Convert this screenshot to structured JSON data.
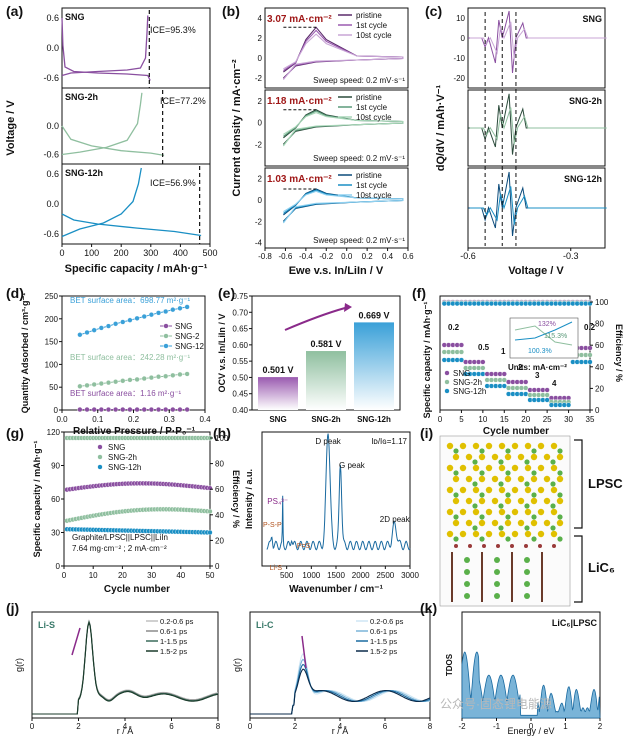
{
  "panel_letters": [
    "(a)",
    "(b)",
    "(c)",
    "(d)",
    "(e)",
    "(f)",
    "(g)",
    "(h)",
    "(i)",
    "(j)",
    "(k)"
  ],
  "watermark": "公众号·固态锂电能源",
  "chart_data": [
    {
      "panel": "(a)",
      "type": "line",
      "xlabel": "Specific capacity / mAh·g⁻¹",
      "ylabel": "Voltage / V",
      "xlim": [
        0,
        500
      ],
      "xticks": [
        "0",
        "100",
        "200",
        "300",
        "400",
        "500"
      ],
      "yticks": [
        "0.6",
        "0.0",
        "-0.6"
      ],
      "subplots": [
        {
          "label": "SNG",
          "ice": "ICE=95.3%",
          "color": "#8a4fa0",
          "ylim": [
            -0.8,
            0.8
          ],
          "dis": [
            [
              0,
              0.6
            ],
            [
              3,
              0.05
            ],
            [
              10,
              -0.38
            ],
            [
              40,
              -0.47
            ],
            [
              120,
              -0.5
            ],
            [
              220,
              -0.52
            ],
            [
              290,
              -0.55
            ],
            [
              298,
              -0.65
            ]
          ],
          "chg": [
            [
              0,
              -0.55
            ],
            [
              30,
              -0.5
            ],
            [
              120,
              -0.47
            ],
            [
              220,
              -0.44
            ],
            [
              265,
              -0.4
            ],
            [
              282,
              -0.2
            ],
            [
              287,
              0.3
            ],
            [
              290,
              0.65
            ]
          ],
          "dash_x": 295
        },
        {
          "label": "SNG-2h",
          "ice": "ICE=77.2%",
          "color": "#8fbf9f",
          "ylim": [
            -0.8,
            0.8
          ],
          "dis": [
            [
              0,
              0.0
            ],
            [
              30,
              -0.28
            ],
            [
              100,
              -0.42
            ],
            [
              200,
              -0.52
            ],
            [
              300,
              -0.57
            ],
            [
              345,
              -0.62
            ]
          ],
          "chg": [
            [
              0,
              -0.6
            ],
            [
              60,
              -0.55
            ],
            [
              150,
              -0.45
            ],
            [
              220,
              -0.3
            ],
            [
              255,
              0.05
            ],
            [
              265,
              0.45
            ],
            [
              270,
              0.7
            ]
          ],
          "dash_x": 340
        },
        {
          "label": "SNG-12h",
          "ice": "ICE=56.9%",
          "color": "#1a8fc4",
          "ylim": [
            -0.8,
            0.8
          ],
          "dis": [
            [
              0,
              -0.2
            ],
            [
              40,
              -0.32
            ],
            [
              120,
              -0.4
            ],
            [
              250,
              -0.48
            ],
            [
              380,
              -0.55
            ],
            [
              470,
              -0.63
            ]
          ],
          "chg": [
            [
              0,
              -0.65
            ],
            [
              60,
              -0.5
            ],
            [
              140,
              -0.38
            ],
            [
              200,
              -0.2
            ],
            [
              240,
              0.05
            ],
            [
              258,
              0.4
            ],
            [
              268,
              0.72
            ]
          ],
          "dash_x": 465
        }
      ]
    },
    {
      "panel": "(b)",
      "type": "line",
      "xlabel": "Ewe v.s. In/LiIn / V",
      "ylabel": "Current density / mA·cm⁻²",
      "xlim": [
        -0.8,
        0.6
      ],
      "xticks": [
        "-0.8",
        "-0.6",
        "-0.4",
        "-0.2",
        "0.0",
        "0.2",
        "0.4",
        "0.6"
      ],
      "sweep": "Sweep speed: 0.2 mV·s⁻¹",
      "legend": [
        "pristine",
        "1st cycle",
        "10st cycle"
      ],
      "subplots": [
        {
          "peak": "3.07 mA·cm⁻²",
          "ylim": [
            -3,
            5
          ],
          "yticks": [
            "4",
            "2",
            "0",
            "-2"
          ],
          "colors": [
            "#5a2a6a",
            "#9a5ab0",
            "#c9a6d6"
          ],
          "peak_val": 3.07
        },
        {
          "peak": "1.18 mA·cm⁻²",
          "ylim": [
            -4,
            3
          ],
          "yticks": [
            "2",
            "0",
            "-2"
          ],
          "colors": [
            "#2a4a3a",
            "#5a9a7a",
            "#a8d6b8"
          ],
          "peak_val": 1.18
        },
        {
          "peak": "1.03 mA·cm⁻²",
          "ylim": [
            -4.5,
            3
          ],
          "yticks": [
            "2",
            "0",
            "-2",
            "-4"
          ],
          "colors": [
            "#0a4a7a",
            "#1a8fc4",
            "#8fd0f0"
          ],
          "peak_val": 1.03
        }
      ]
    },
    {
      "panel": "(c)",
      "type": "line",
      "xlabel": "Voltage / V",
      "ylabel": "dQ/dV / mAh·V⁻¹",
      "xlim": [
        -0.6,
        -0.2
      ],
      "xticks": [
        "-0.6",
        "-0.3"
      ],
      "subplots": [
        {
          "label": "SNG",
          "yticks": [
            "10",
            "0",
            "-10",
            "-20"
          ],
          "ylim": [
            -25,
            15
          ],
          "color": "#8a4fa0",
          "color2": "#c9a6d6"
        },
        {
          "label": "SNG-2h",
          "yticks": [],
          "ylim": [
            -10,
            10
          ],
          "color": "#2a4a3a",
          "color2": "#8fbf9f"
        },
        {
          "label": "SNG-12h",
          "yticks": [],
          "ylim": [
            -10,
            10
          ],
          "color": "#0a4a7a",
          "color2": "#1a8fc4"
        }
      ]
    },
    {
      "panel": "(d)",
      "type": "scatter",
      "xlabel": "Relative Pressure / P·P₀⁻¹",
      "ylabel": "Quantity Adsorbed / cm³·g⁻¹",
      "xlim": [
        0.0,
        0.4
      ],
      "ylim": [
        0,
        250
      ],
      "xticks": [
        "0.0",
        "0.1",
        "0.2",
        "0.3",
        "0.4"
      ],
      "yticks": [
        "0",
        "50",
        "100",
        "150",
        "200",
        "250"
      ],
      "x": [
        0.05,
        0.07,
        0.09,
        0.11,
        0.13,
        0.15,
        0.17,
        0.19,
        0.21,
        0.23,
        0.25,
        0.27,
        0.29,
        0.31,
        0.33,
        0.35
      ],
      "series": [
        {
          "name": "SNG",
          "color": "#8a4fa0",
          "values": [
            1,
            1,
            1,
            1,
            1,
            1,
            1,
            1,
            1,
            1,
            1,
            1,
            1,
            1,
            1,
            1
          ]
        },
        {
          "name": "SNG-2",
          "color": "#8fbf9f",
          "values": [
            52,
            54,
            56,
            58,
            60,
            62,
            64,
            66,
            67,
            69,
            71,
            73,
            74,
            76,
            78,
            79
          ]
        },
        {
          "name": "SNG-12",
          "color": "#3aa0d8",
          "values": [
            165,
            170,
            175,
            180,
            184,
            189,
            193,
            197,
            201,
            205,
            209,
            213,
            216,
            220,
            223,
            226
          ]
        }
      ],
      "annotations": [
        {
          "text": "BET surface area：698.77 m²·g⁻¹",
          "color": "#3aa0d8"
        },
        {
          "text": "BET surface area：242.28 m²·g⁻¹",
          "color": "#8fbf9f"
        },
        {
          "text": "BET surface area：1.16 m²·g⁻¹",
          "color": "#8a4fa0"
        }
      ]
    },
    {
      "panel": "(e)",
      "type": "bar",
      "ylabel": "OCV v.s. In/LiIn / V",
      "categories": [
        "SNG",
        "SNG-2h",
        "SNG-12h"
      ],
      "values": [
        0.501,
        0.581,
        0.669
      ],
      "labels": [
        "0.501 V",
        "0.581 V",
        "0.669 V"
      ],
      "colors": [
        "#9a5ab0",
        "#8fbf9f",
        "#3aa0d8"
      ],
      "ylim": [
        0.4,
        0.75
      ],
      "yticks": [
        "0.40",
        "0.45",
        "0.50",
        "0.55",
        "0.60",
        "0.65",
        "0.70",
        "0.75"
      ]
    },
    {
      "panel": "(f)",
      "type": "scatter",
      "xlabel": "Cycle number",
      "ylabel": "Specific capacity / mAh·g⁻¹",
      "ylabel2": "Efficiency / %",
      "xlim": [
        0,
        35
      ],
      "xticks": [
        "0",
        "5",
        "10",
        "15",
        "20",
        "25",
        "30",
        "35"
      ],
      "yticks2": [
        "0",
        "20",
        "40",
        "60",
        "80",
        "100"
      ],
      "rates": [
        "0.2",
        "0.5",
        "1",
        "2",
        "3",
        "4",
        "0.2"
      ],
      "units": "Units: mA·cm⁻²",
      "inset": [
        "132%",
        "115.3%",
        "100.3%"
      ],
      "series": [
        {
          "name": "SNG",
          "color": "#8a4fa0"
        },
        {
          "name": "SNG-2h",
          "color": "#8fbf9f"
        },
        {
          "name": "SNG-12h",
          "color": "#1a8fc4"
        }
      ]
    },
    {
      "panel": "(g)",
      "type": "scatter",
      "xlabel": "Cycle number",
      "ylabel": "Specific capacity / mAh·g⁻¹",
      "ylabel2": "Efficiency / %",
      "xlim": [
        0,
        50
      ],
      "ylim": [
        0,
        120
      ],
      "ylim2": [
        0,
        100
      ],
      "xticks": [
        "0",
        "10",
        "20",
        "30",
        "40",
        "50"
      ],
      "yticks": [
        "0",
        "30",
        "60",
        "90",
        "120"
      ],
      "yticks2": [
        "0",
        "20",
        "40",
        "60",
        "80",
        "100"
      ],
      "cell": "Graphite/LPSC||LPSC||LiIn",
      "loading": "7.64 mg·cm⁻² ; 2 mA·cm⁻²",
      "series": [
        {
          "name": "SNG",
          "color": "#8a4fa0",
          "start": 68,
          "end": 70
        },
        {
          "name": "SNG-2h",
          "color": "#8fbf9f",
          "start": 40,
          "end": 48
        },
        {
          "name": "SNG-12h",
          "color": "#1a8fc4",
          "start": 33,
          "end": 30
        }
      ]
    },
    {
      "panel": "(h)",
      "type": "line",
      "xlabel": "Wavenumber / cm⁻¹",
      "ylabel": "Intensity / a.u.",
      "xlim": [
        0,
        3000
      ],
      "xticks": [
        "500",
        "1000",
        "1500",
        "2000",
        "2500",
        "3000"
      ],
      "ratio": "Iᴅ/Iɢ=1.17",
      "peaks": [
        "D peak",
        "G peak",
        "2D peak",
        "PS₄³⁻",
        "P-S-P",
        "P=S",
        "Li-S"
      ]
    },
    {
      "panel": "(i)",
      "type": "other",
      "labels": [
        "LPSC",
        "LiC₆"
      ]
    },
    {
      "panel": "(j)",
      "type": "line",
      "xlabel": "r / Å",
      "ylabel": "g(r)",
      "xlim": [
        0,
        8
      ],
      "xticks": [
        "0",
        "2",
        "4",
        "6",
        "8"
      ],
      "titles": [
        "Li-S",
        "Li-C"
      ],
      "legend": [
        "0.2-0.6 ps",
        "0.6-1 ps",
        "1-1.5 ps",
        "1.5-2 ps"
      ]
    },
    {
      "panel": "(k)",
      "type": "line",
      "xlabel": "Energy / eV",
      "ylabel": "TDOS",
      "xlim": [
        -2,
        2
      ],
      "xticks": [
        "-2",
        "-1",
        "0",
        "1",
        "2"
      ],
      "title": "LiC₆|LPSC"
    }
  ]
}
